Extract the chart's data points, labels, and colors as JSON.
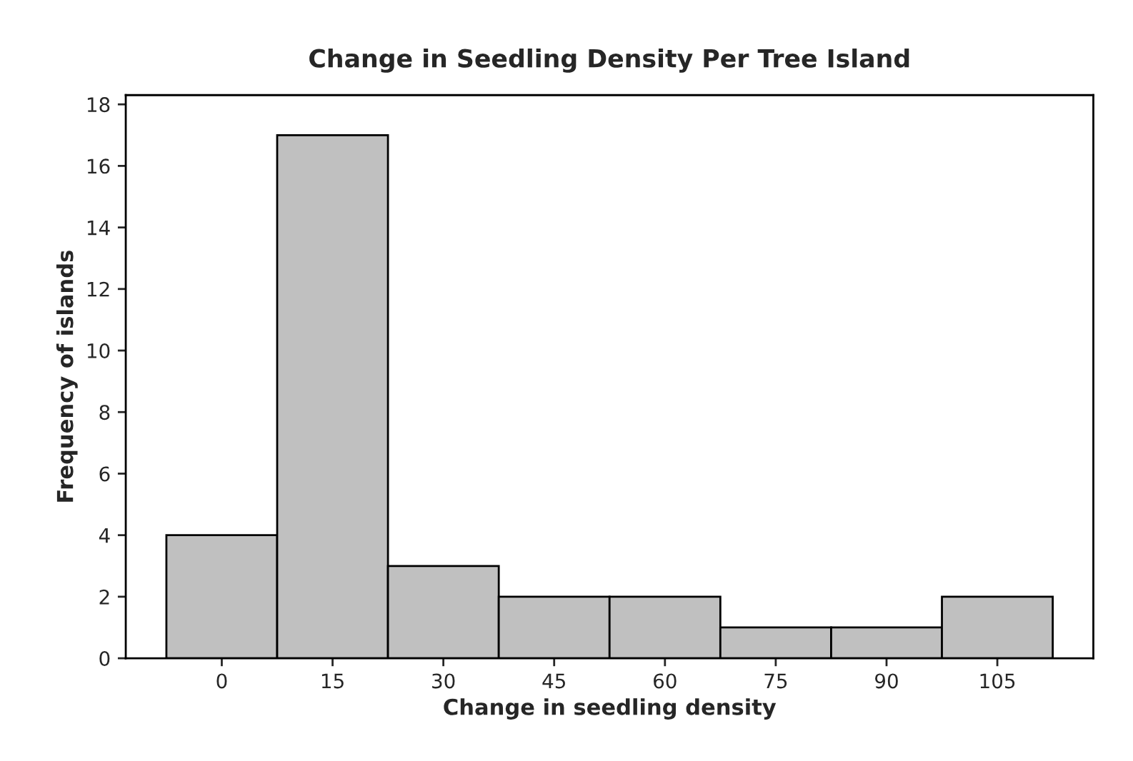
{
  "chart_data": {
    "type": "histogram",
    "title": "Change in Seedling Density Per Tree Island",
    "xlabel": "Change in seedling density",
    "ylabel": "Frequency of islands",
    "bins": [
      -7.5,
      7.5,
      22.5,
      37.5,
      52.5,
      67.5,
      82.5,
      97.5,
      112.5
    ],
    "values": [
      4,
      17,
      3,
      2,
      2,
      1,
      1,
      2
    ],
    "color": "#c0c0c0",
    "xlim": [
      -13,
      118
    ],
    "xticks": [
      0,
      15,
      30,
      45,
      60,
      75,
      90,
      105
    ],
    "ylim": [
      0,
      18.3
    ],
    "yticks": [
      0,
      2,
      4,
      6,
      8,
      10,
      12,
      14,
      16,
      18
    ],
    "grid": false,
    "legend": false
  }
}
